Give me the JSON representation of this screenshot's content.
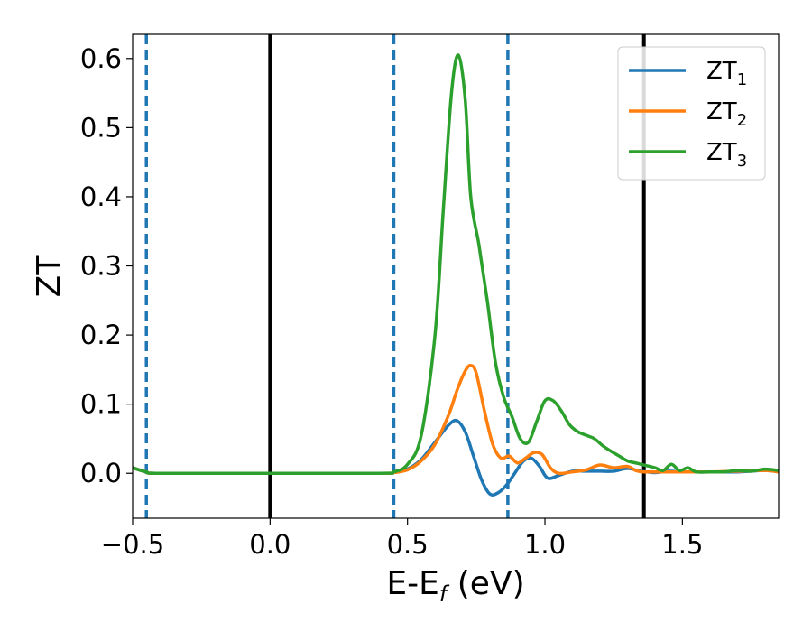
{
  "chart_data": {
    "type": "line",
    "title": "",
    "xlabel": {
      "main": "E-E",
      "sub": "f",
      "tail": " (eV)"
    },
    "ylabel": "ZT",
    "xlim": [
      -0.5,
      1.85
    ],
    "ylim": [
      -0.065,
      0.635
    ],
    "x_ticks": [
      -0.5,
      0.0,
      0.5,
      1.0,
      1.5
    ],
    "x_tick_labels": [
      "−0.5",
      "0.0",
      "0.5",
      "1.0",
      "1.5"
    ],
    "y_ticks": [
      0.0,
      0.1,
      0.2,
      0.3,
      0.4,
      0.5,
      0.6
    ],
    "y_tick_labels": [
      "0.0",
      "0.1",
      "0.2",
      "0.3",
      "0.4",
      "0.5",
      "0.6"
    ],
    "grid": false,
    "legend_position": "top-right",
    "vertical_lines": [
      {
        "x": -0.45,
        "style": "dashed",
        "color": "#1f77b4"
      },
      {
        "x": 0.0,
        "style": "solid",
        "color": "#000000"
      },
      {
        "x": 0.45,
        "style": "dashed",
        "color": "#1f77b4"
      },
      {
        "x": 0.865,
        "style": "dashed",
        "color": "#1f77b4"
      },
      {
        "x": 1.36,
        "style": "solid",
        "color": "#000000"
      }
    ],
    "series": [
      {
        "name": "ZT",
        "sub": "1",
        "color": "#1f77b4",
        "x": [
          -0.5,
          -0.45,
          -0.4,
          0.0,
          0.4,
          0.45,
          0.5,
          0.55,
          0.6,
          0.65,
          0.68,
          0.71,
          0.74,
          0.77,
          0.8,
          0.83,
          0.86,
          0.89,
          0.92,
          0.95,
          0.98,
          1.01,
          1.05,
          1.1,
          1.15,
          1.2,
          1.25,
          1.3,
          1.35,
          1.4,
          1.45,
          1.5,
          1.6,
          1.7,
          1.8,
          1.85
        ],
        "y": [
          0.008,
          0.002,
          0.0,
          0.0,
          0.0,
          0.001,
          0.006,
          0.02,
          0.045,
          0.07,
          0.076,
          0.06,
          0.025,
          -0.01,
          -0.03,
          -0.028,
          -0.017,
          0.0,
          0.017,
          0.022,
          0.01,
          -0.007,
          -0.003,
          0.003,
          0.003,
          0.003,
          0.003,
          0.007,
          0.003,
          0.001,
          0.003,
          0.002,
          0.002,
          0.002,
          0.004,
          0.002
        ]
      },
      {
        "name": "ZT",
        "sub": "2",
        "color": "#ff7f0e",
        "x": [
          -0.5,
          -0.45,
          -0.4,
          0.0,
          0.4,
          0.45,
          0.5,
          0.55,
          0.6,
          0.65,
          0.68,
          0.71,
          0.73,
          0.75,
          0.78,
          0.81,
          0.84,
          0.87,
          0.9,
          0.93,
          0.96,
          0.99,
          1.02,
          1.05,
          1.1,
          1.15,
          1.2,
          1.25,
          1.3,
          1.33,
          1.36,
          1.4,
          1.5,
          1.6,
          1.7,
          1.8,
          1.85
        ],
        "y": [
          0.008,
          0.002,
          0.0,
          0.0,
          0.0,
          0.001,
          0.005,
          0.018,
          0.042,
          0.085,
          0.12,
          0.148,
          0.156,
          0.145,
          0.09,
          0.042,
          0.022,
          0.025,
          0.015,
          0.022,
          0.03,
          0.027,
          0.008,
          0.0,
          0.002,
          0.005,
          0.012,
          0.008,
          0.01,
          0.004,
          0.002,
          0.002,
          0.002,
          0.002,
          0.003,
          0.004,
          0.002
        ]
      },
      {
        "name": "ZT",
        "sub": "3",
        "color": "#2ca02c",
        "x": [
          -0.5,
          -0.45,
          -0.4,
          0.0,
          0.4,
          0.45,
          0.5,
          0.55,
          0.6,
          0.63,
          0.66,
          0.685,
          0.71,
          0.73,
          0.76,
          0.79,
          0.82,
          0.85,
          0.88,
          0.91,
          0.94,
          0.97,
          1.0,
          1.03,
          1.06,
          1.09,
          1.12,
          1.15,
          1.18,
          1.21,
          1.24,
          1.27,
          1.3,
          1.33,
          1.36,
          1.4,
          1.43,
          1.46,
          1.49,
          1.52,
          1.55,
          1.6,
          1.65,
          1.7,
          1.75,
          1.8,
          1.85
        ],
        "y": [
          0.008,
          0.002,
          0.0,
          0.0,
          0.0,
          0.002,
          0.013,
          0.055,
          0.2,
          0.38,
          0.55,
          0.605,
          0.54,
          0.4,
          0.33,
          0.25,
          0.16,
          0.11,
          0.082,
          0.05,
          0.045,
          0.075,
          0.105,
          0.105,
          0.09,
          0.07,
          0.06,
          0.055,
          0.05,
          0.04,
          0.032,
          0.025,
          0.018,
          0.015,
          0.012,
          0.008,
          0.004,
          0.013,
          0.004,
          0.008,
          0.002,
          0.002,
          0.002,
          0.004,
          0.003,
          0.006,
          0.004
        ]
      }
    ]
  }
}
